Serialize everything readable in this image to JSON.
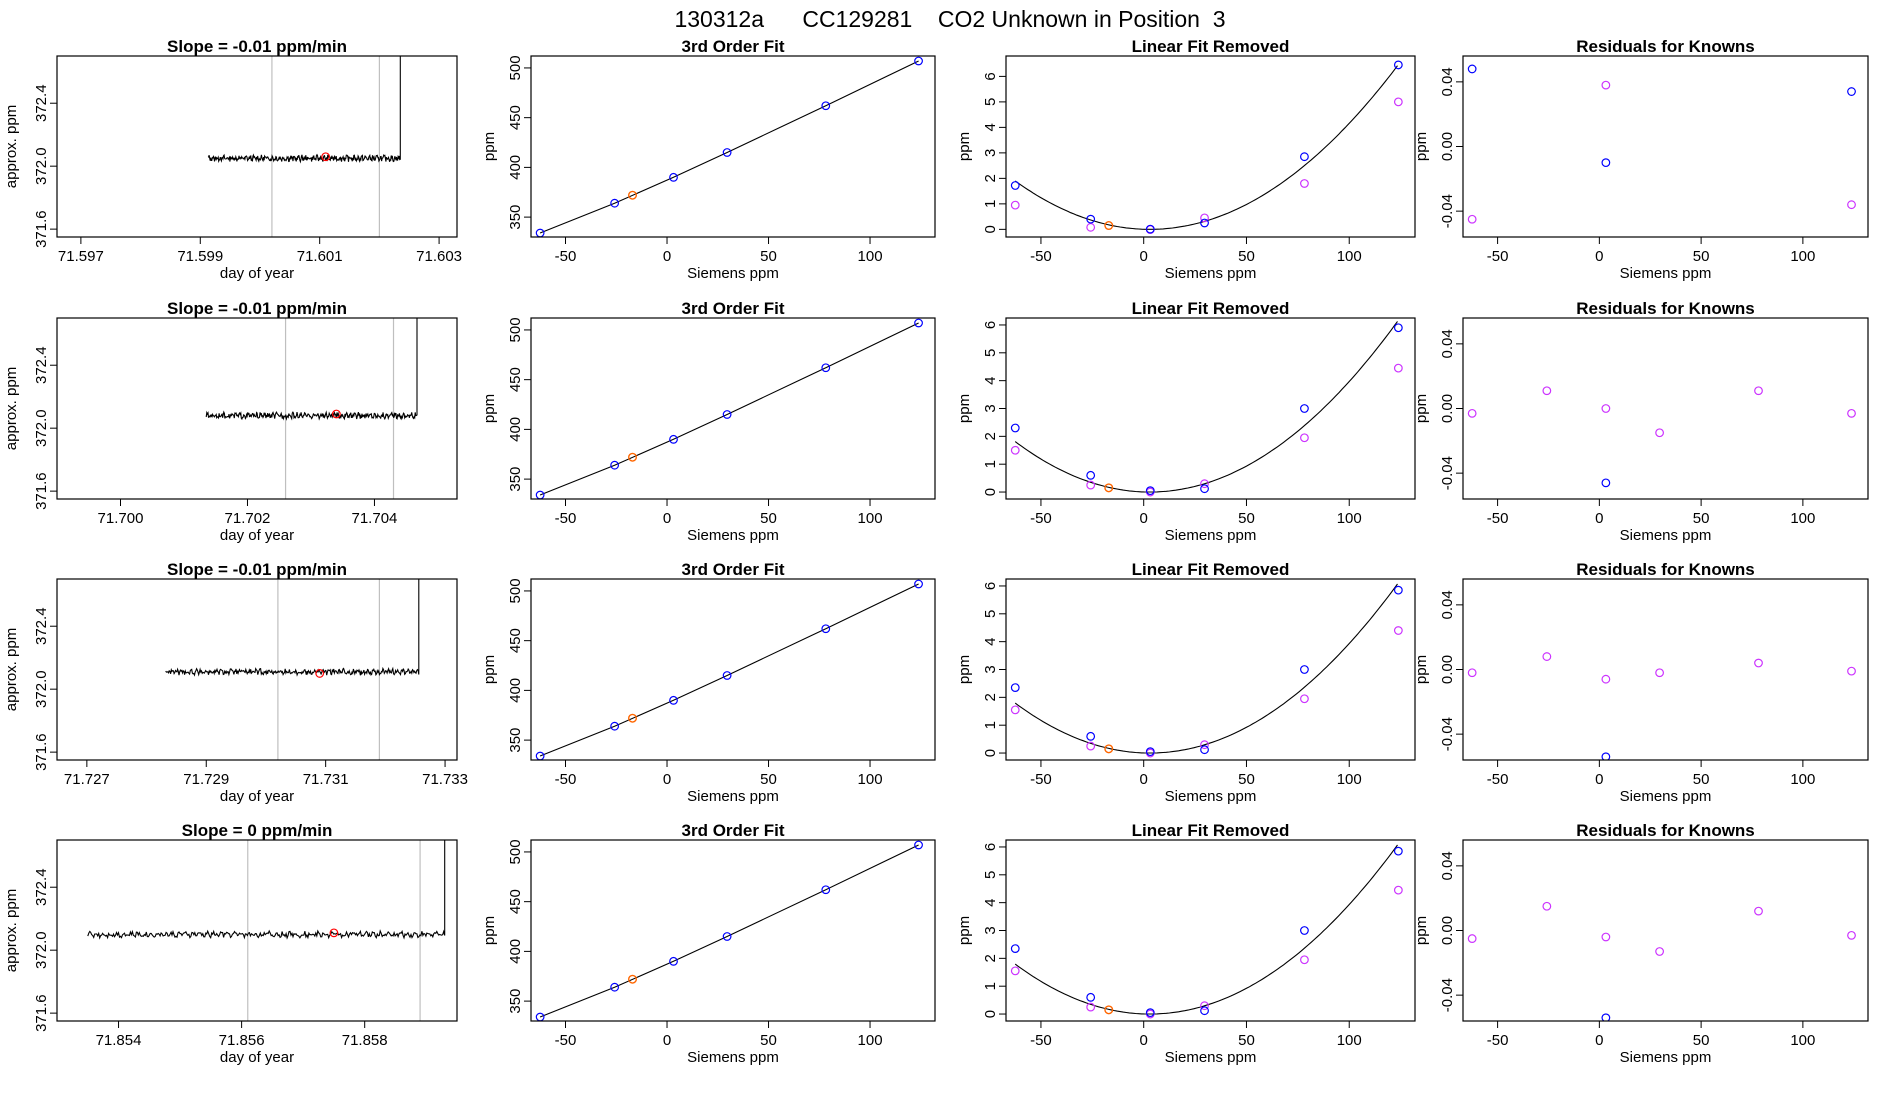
{
  "title": "130312a      CC129281    CO2 Unknown in Position  3",
  "chart_data": [
    {
      "type": "line",
      "row": 1,
      "col": 1,
      "title": "Slope =  -0.01  ppm/min",
      "xlabel": "day of year",
      "ylabel": "approx. ppm",
      "xlim": [
        71.5966,
        71.6033
      ],
      "ylim": [
        371.55,
        372.7
      ],
      "xticks": [
        "71.597",
        "71.599",
        "71.601",
        "71.603"
      ],
      "xtick_values": [
        71.597,
        71.599,
        71.601,
        71.603
      ],
      "yticks": [
        "371.6",
        "372.0",
        "372.4"
      ],
      "ytick_values": [
        371.6,
        372.0,
        372.4
      ],
      "vlines": [
        71.6002,
        71.602
      ],
      "red_point": {
        "x": 71.6011,
        "y": 372.06
      },
      "trace": {
        "start": 71.59913,
        "end": 71.60235,
        "level": 372.05,
        "peak": 372.7,
        "baseline": 372.09
      }
    },
    {
      "type": "scatter",
      "row": 1,
      "col": 2,
      "title": "3rd Order Fit",
      "xlabel": "Siemens ppm",
      "ylabel": "ppm",
      "xlim": [
        -67,
        132
      ],
      "ylim": [
        330,
        512
      ],
      "xticks": [
        "-50",
        "0",
        "50",
        "100"
      ],
      "xtick_values": [
        -50,
        0,
        50,
        100
      ],
      "yticks": [
        "350",
        "400",
        "450",
        "500"
      ],
      "ytick_values": [
        350,
        400,
        450,
        500
      ],
      "knowns": [
        {
          "x": -62.5,
          "y": 334
        },
        {
          "x": -25.8,
          "y": 364
        },
        {
          "x": 3.2,
          "y": 390
        },
        {
          "x": 29.6,
          "y": 415
        },
        {
          "x": 78.2,
          "y": 462
        },
        {
          "x": 123.9,
          "y": 507
        }
      ],
      "unknown": {
        "x": -17,
        "y": 372
      }
    },
    {
      "type": "scatter",
      "row": 1,
      "col": 3,
      "title": "Linear Fit Removed",
      "xlabel": "Siemens ppm",
      "ylabel": "ppm",
      "xlim": [
        -67,
        132
      ],
      "ylim": [
        -0.3,
        6.8
      ],
      "xticks": [
        "-50",
        "0",
        "50",
        "100"
      ],
      "xtick_values": [
        -50,
        0,
        50,
        100
      ],
      "yticks": [
        "0",
        "1",
        "2",
        "3",
        "4",
        "5",
        "6"
      ],
      "ytick_values": [
        0,
        1,
        2,
        3,
        4,
        5,
        6
      ],
      "blue": [
        {
          "x": -62.5,
          "y": 1.72
        },
        {
          "x": -25.8,
          "y": 0.4
        },
        {
          "x": 3.2,
          "y": 0.01
        },
        {
          "x": 29.6,
          "y": 0.25
        },
        {
          "x": 78.2,
          "y": 2.85
        },
        {
          "x": 123.9,
          "y": 6.45
        }
      ],
      "magenta": [
        {
          "x": -62.5,
          "y": 0.95
        },
        {
          "x": -25.8,
          "y": 0.08
        },
        {
          "x": 3.2,
          "y": -0.01
        },
        {
          "x": 29.6,
          "y": 0.45
        },
        {
          "x": 78.2,
          "y": 1.8
        },
        {
          "x": 123.9,
          "y": 5.0
        }
      ],
      "unknown": {
        "x": -17,
        "y": 0.15
      },
      "curve_a": 0.000442
    },
    {
      "type": "scatter",
      "row": 1,
      "col": 4,
      "title": "Residuals for Knowns",
      "xlabel": "Siemens ppm",
      "ylabel": "ppm",
      "xlim": [
        -67,
        132
      ],
      "ylim": [
        -0.056,
        0.056
      ],
      "xticks": [
        "-50",
        "0",
        "50",
        "100"
      ],
      "xtick_values": [
        -50,
        0,
        50,
        100
      ],
      "yticks": [
        "-0.04",
        "0.00",
        "0.04"
      ],
      "ytick_values": [
        -0.04,
        0,
        0.04
      ],
      "blue": [
        {
          "x": -62.5,
          "y": 0.048
        },
        {
          "x": 3.2,
          "y": -0.01
        },
        {
          "x": 123.9,
          "y": 0.034
        }
      ],
      "magenta": [
        {
          "x": -62.5,
          "y": -0.045
        },
        {
          "x": 3.2,
          "y": 0.038
        },
        {
          "x": 123.9,
          "y": -0.036
        }
      ]
    },
    {
      "type": "line",
      "row": 2,
      "col": 1,
      "title": "Slope =  -0.01  ppm/min",
      "xlabel": "day of year",
      "ylabel": "approx. ppm",
      "xlim": [
        71.699,
        71.7053
      ],
      "ylim": [
        371.55,
        372.7
      ],
      "xticks": [
        "71.700",
        "71.702",
        "71.704"
      ],
      "xtick_values": [
        71.7,
        71.702,
        71.704
      ],
      "yticks": [
        "371.6",
        "372.0",
        "372.4"
      ],
      "ytick_values": [
        371.6,
        372.0,
        372.4
      ],
      "vlines": [
        71.7026,
        71.7043
      ],
      "red_point": {
        "x": 71.7034,
        "y": 372.09
      },
      "trace": {
        "start": 71.70135,
        "end": 71.70467,
        "level": 372.08,
        "peak": 372.7,
        "baseline": 372.12
      }
    },
    {
      "type": "scatter",
      "row": 2,
      "col": 2,
      "title": "3rd Order Fit",
      "xlabel": "Siemens ppm",
      "ylabel": "ppm",
      "xlim": [
        -67,
        132
      ],
      "ylim": [
        330,
        512
      ],
      "xticks": [
        "-50",
        "0",
        "50",
        "100"
      ],
      "xtick_values": [
        -50,
        0,
        50,
        100
      ],
      "yticks": [
        "350",
        "400",
        "450",
        "500"
      ],
      "ytick_values": [
        350,
        400,
        450,
        500
      ],
      "knowns": [
        {
          "x": -62.5,
          "y": 334
        },
        {
          "x": -25.8,
          "y": 364
        },
        {
          "x": 3.2,
          "y": 390
        },
        {
          "x": 29.6,
          "y": 415
        },
        {
          "x": 78.2,
          "y": 462
        },
        {
          "x": 123.9,
          "y": 507
        }
      ],
      "unknown": {
        "x": -17,
        "y": 372
      }
    },
    {
      "type": "scatter",
      "row": 2,
      "col": 3,
      "title": "Linear Fit Removed",
      "xlabel": "Siemens ppm",
      "ylabel": "ppm",
      "xlim": [
        -67,
        132
      ],
      "ylim": [
        -0.25,
        6.25
      ],
      "xticks": [
        "-50",
        "0",
        "50",
        "100"
      ],
      "xtick_values": [
        -50,
        0,
        50,
        100
      ],
      "yticks": [
        "0",
        "1",
        "2",
        "3",
        "4",
        "5",
        "6"
      ],
      "ytick_values": [
        0,
        1,
        2,
        3,
        4,
        5,
        6
      ],
      "blue": [
        {
          "x": -62.5,
          "y": 2.3
        },
        {
          "x": -25.8,
          "y": 0.6
        },
        {
          "x": 3.2,
          "y": 0.05
        },
        {
          "x": 29.6,
          "y": 0.12
        },
        {
          "x": 78.2,
          "y": 3.0
        },
        {
          "x": 123.9,
          "y": 5.9
        }
      ],
      "magenta": [
        {
          "x": -62.5,
          "y": 1.5
        },
        {
          "x": -25.8,
          "y": 0.25
        },
        {
          "x": 3.2,
          "y": 0.0
        },
        {
          "x": 29.6,
          "y": 0.3
        },
        {
          "x": 78.2,
          "y": 1.95
        },
        {
          "x": 123.9,
          "y": 4.45
        }
      ],
      "unknown": {
        "x": -17,
        "y": 0.15
      },
      "curve_a": 0.000422
    },
    {
      "type": "scatter",
      "row": 2,
      "col": 4,
      "title": "Residuals for Knowns",
      "xlabel": "Siemens ppm",
      "ylabel": "ppm",
      "xlim": [
        -67,
        132
      ],
      "ylim": [
        -0.056,
        0.056
      ],
      "xticks": [
        "-50",
        "0",
        "50",
        "100"
      ],
      "xtick_values": [
        -50,
        0,
        50,
        100
      ],
      "yticks": [
        "-0.04",
        "0.00",
        "0.04"
      ],
      "ytick_values": [
        -0.04,
        0,
        0.04
      ],
      "blue": [
        {
          "x": 3.2,
          "y": -0.046
        }
      ],
      "magenta": [
        {
          "x": -62.5,
          "y": -0.003
        },
        {
          "x": -25.8,
          "y": 0.011
        },
        {
          "x": 3.2,
          "y": 0.0
        },
        {
          "x": 29.6,
          "y": -0.015
        },
        {
          "x": 78.2,
          "y": 0.011
        },
        {
          "x": 123.9,
          "y": -0.003
        }
      ]
    },
    {
      "type": "line",
      "row": 3,
      "col": 1,
      "title": "Slope =  -0.01  ppm/min",
      "xlabel": "day of year",
      "ylabel": "approx. ppm",
      "xlim": [
        71.7265,
        71.7332
      ],
      "ylim": [
        371.55,
        372.7
      ],
      "xticks": [
        "71.727",
        "71.729",
        "71.731",
        "71.733"
      ],
      "xtick_values": [
        71.727,
        71.729,
        71.731,
        71.733
      ],
      "yticks": [
        "371.6",
        "372.0",
        "372.4"
      ],
      "ytick_values": [
        371.6,
        372.0,
        372.4
      ],
      "vlines": [
        71.7302,
        71.7319
      ],
      "red_point": {
        "x": 71.7309,
        "y": 372.1
      },
      "trace": {
        "start": 71.72832,
        "end": 71.73256,
        "level": 372.11,
        "peak": 372.7,
        "baseline": 372.18
      }
    },
    {
      "type": "scatter",
      "row": 3,
      "col": 2,
      "title": "3rd Order Fit",
      "xlabel": "Siemens ppm",
      "ylabel": "ppm",
      "xlim": [
        -67,
        132
      ],
      "ylim": [
        330,
        512
      ],
      "xticks": [
        "-50",
        "0",
        "50",
        "100"
      ],
      "xtick_values": [
        -50,
        0,
        50,
        100
      ],
      "yticks": [
        "350",
        "400",
        "450",
        "500"
      ],
      "ytick_values": [
        350,
        400,
        450,
        500
      ],
      "knowns": [
        {
          "x": -62.5,
          "y": 334
        },
        {
          "x": -25.8,
          "y": 364
        },
        {
          "x": 3.2,
          "y": 390
        },
        {
          "x": 29.6,
          "y": 415
        },
        {
          "x": 78.2,
          "y": 462
        },
        {
          "x": 123.9,
          "y": 507
        }
      ],
      "unknown": {
        "x": -17,
        "y": 372
      }
    },
    {
      "type": "scatter",
      "row": 3,
      "col": 3,
      "title": "Linear Fit Removed",
      "xlabel": "Siemens ppm",
      "ylabel": "ppm",
      "xlim": [
        -67,
        132
      ],
      "ylim": [
        -0.25,
        6.25
      ],
      "xticks": [
        "-50",
        "0",
        "50",
        "100"
      ],
      "xtick_values": [
        -50,
        0,
        50,
        100
      ],
      "yticks": [
        "0",
        "1",
        "2",
        "3",
        "4",
        "5",
        "6"
      ],
      "ytick_values": [
        0,
        1,
        2,
        3,
        4,
        5,
        6
      ],
      "blue": [
        {
          "x": -62.5,
          "y": 2.35
        },
        {
          "x": -25.8,
          "y": 0.6
        },
        {
          "x": 3.2,
          "y": 0.05
        },
        {
          "x": 29.6,
          "y": 0.12
        },
        {
          "x": 78.2,
          "y": 3.0
        },
        {
          "x": 123.9,
          "y": 5.85
        }
      ],
      "magenta": [
        {
          "x": -62.5,
          "y": 1.55
        },
        {
          "x": -25.8,
          "y": 0.25
        },
        {
          "x": 3.2,
          "y": 0.0
        },
        {
          "x": 29.6,
          "y": 0.3
        },
        {
          "x": 78.2,
          "y": 1.95
        },
        {
          "x": 123.9,
          "y": 4.4
        }
      ],
      "unknown": {
        "x": -17,
        "y": 0.15
      },
      "curve_a": 0.000418
    },
    {
      "type": "scatter",
      "row": 3,
      "col": 4,
      "title": "Residuals for Knowns",
      "xlabel": "Siemens ppm",
      "ylabel": "ppm",
      "xlim": [
        -67,
        132
      ],
      "ylim": [
        -0.056,
        0.056
      ],
      "xticks": [
        "-50",
        "0",
        "50",
        "100"
      ],
      "xtick_values": [
        -50,
        0,
        50,
        100
      ],
      "yticks": [
        "-0.04",
        "0.00",
        "0.04"
      ],
      "ytick_values": [
        -0.04,
        0,
        0.04
      ],
      "blue": [
        {
          "x": 3.2,
          "y": -0.054
        }
      ],
      "magenta": [
        {
          "x": -62.5,
          "y": -0.002
        },
        {
          "x": -25.8,
          "y": 0.008
        },
        {
          "x": 3.2,
          "y": -0.006
        },
        {
          "x": 29.6,
          "y": -0.002
        },
        {
          "x": 78.2,
          "y": 0.004
        },
        {
          "x": 123.9,
          "y": -0.001
        }
      ]
    },
    {
      "type": "line",
      "row": 4,
      "col": 1,
      "title": "Slope =  0  ppm/min",
      "xlabel": "day of year",
      "ylabel": "approx. ppm",
      "xlim": [
        71.853,
        71.8595
      ],
      "ylim": [
        371.55,
        372.7
      ],
      "xticks": [
        "71.854",
        "71.856",
        "71.858"
      ],
      "xtick_values": [
        71.854,
        71.856,
        71.858
      ],
      "yticks": [
        "371.6",
        "372.0",
        "372.4"
      ],
      "ytick_values": [
        371.6,
        372.0,
        372.4
      ],
      "vlines": [
        71.8561,
        71.8589
      ],
      "red_point": {
        "x": 71.8575,
        "y": 372.11
      },
      "trace": {
        "start": 71.8535,
        "end": 71.8593,
        "level": 372.1,
        "peak": 372.7,
        "baseline": 372.12
      }
    },
    {
      "type": "scatter",
      "row": 4,
      "col": 2,
      "title": "3rd Order Fit",
      "xlabel": "Siemens ppm",
      "ylabel": "ppm",
      "xlim": [
        -67,
        132
      ],
      "ylim": [
        330,
        512
      ],
      "xticks": [
        "-50",
        "0",
        "50",
        "100"
      ],
      "xtick_values": [
        -50,
        0,
        50,
        100
      ],
      "yticks": [
        "350",
        "400",
        "450",
        "500"
      ],
      "ytick_values": [
        350,
        400,
        450,
        500
      ],
      "knowns": [
        {
          "x": -62.5,
          "y": 334
        },
        {
          "x": -25.8,
          "y": 364
        },
        {
          "x": 3.2,
          "y": 390
        },
        {
          "x": 29.6,
          "y": 415
        },
        {
          "x": 78.2,
          "y": 462
        },
        {
          "x": 123.9,
          "y": 507
        }
      ],
      "unknown": {
        "x": -17,
        "y": 372
      }
    },
    {
      "type": "scatter",
      "row": 4,
      "col": 3,
      "title": "Linear Fit Removed",
      "xlabel": "Siemens ppm",
      "ylabel": "ppm",
      "xlim": [
        -67,
        132
      ],
      "ylim": [
        -0.25,
        6.25
      ],
      "xticks": [
        "-50",
        "0",
        "50",
        "100"
      ],
      "xtick_values": [
        -50,
        0,
        50,
        100
      ],
      "yticks": [
        "0",
        "1",
        "2",
        "3",
        "4",
        "5",
        "6"
      ],
      "ytick_values": [
        0,
        1,
        2,
        3,
        4,
        5,
        6
      ],
      "blue": [
        {
          "x": -62.5,
          "y": 2.35
        },
        {
          "x": -25.8,
          "y": 0.6
        },
        {
          "x": 3.2,
          "y": 0.05
        },
        {
          "x": 29.6,
          "y": 0.12
        },
        {
          "x": 78.2,
          "y": 3.0
        },
        {
          "x": 123.9,
          "y": 5.85
        }
      ],
      "magenta": [
        {
          "x": -62.5,
          "y": 1.55
        },
        {
          "x": -25.8,
          "y": 0.25
        },
        {
          "x": 3.2,
          "y": 0.0
        },
        {
          "x": 29.6,
          "y": 0.3
        },
        {
          "x": 78.2,
          "y": 1.95
        },
        {
          "x": 123.9,
          "y": 4.45
        }
      ],
      "unknown": {
        "x": -17,
        "y": 0.15
      },
      "curve_a": 0.000418
    },
    {
      "type": "scatter",
      "row": 4,
      "col": 4,
      "title": "Residuals for Knowns",
      "xlabel": "Siemens ppm",
      "ylabel": "ppm",
      "xlim": [
        -67,
        132
      ],
      "ylim": [
        -0.056,
        0.056
      ],
      "xticks": [
        "-50",
        "0",
        "50",
        "100"
      ],
      "xtick_values": [
        -50,
        0,
        50,
        100
      ],
      "yticks": [
        "-0.04",
        "0.00",
        "0.04"
      ],
      "ytick_values": [
        -0.04,
        0,
        0.04
      ],
      "blue": [
        {
          "x": 3.2,
          "y": -0.054
        }
      ],
      "magenta": [
        {
          "x": -62.5,
          "y": -0.005
        },
        {
          "x": -25.8,
          "y": 0.015
        },
        {
          "x": 3.2,
          "y": -0.004
        },
        {
          "x": 29.6,
          "y": -0.013
        },
        {
          "x": 78.2,
          "y": 0.012
        },
        {
          "x": 123.9,
          "y": -0.003
        }
      ]
    }
  ],
  "colors": {
    "known_fit": "#0000ff",
    "known_raw": "#cc33ff",
    "unknown": "#ff6600",
    "red_point": "#ff0000",
    "trace": "#000000",
    "vline": "#bfbfbf"
  }
}
